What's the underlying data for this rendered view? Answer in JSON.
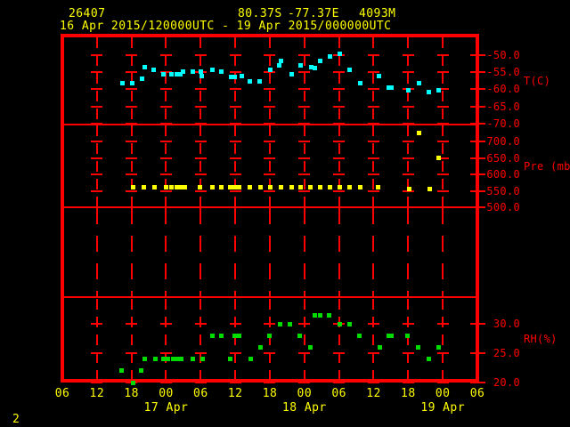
{
  "header": {
    "station_id": "26407",
    "latitude": "80.37S",
    "longitude": "-77.37E",
    "elevation": "4093M",
    "period": "16 Apr 2015/120000UTC - 19 Apr 2015/000000UTC"
  },
  "page_number": "2",
  "colors": {
    "background": "#000000",
    "frame": "#ff0000",
    "header_text": "#ffff00",
    "axis_text": "#ff0000",
    "temperature_series": "#00ffff",
    "pressure_series": "#ffff00",
    "humidity_series": "#00dc00"
  },
  "x_axis": {
    "start": "16 Apr 0600UTC",
    "end": "19 Apr 0600UTC",
    "hours_span": 72,
    "tick_interval_hours": 6,
    "hour_labels": [
      "06",
      "12",
      "18",
      "00",
      "06",
      "12",
      "18",
      "00",
      "06",
      "12",
      "18",
      "00",
      "06"
    ],
    "date_labels": [
      {
        "label": "17 Apr",
        "hour": 18
      },
      {
        "label": "18 Apr",
        "hour": 42
      },
      {
        "label": "19 Apr",
        "hour": 66
      }
    ]
  },
  "chart_data": [
    {
      "type": "scatter",
      "panel": "temperature",
      "series_name": "Temperature",
      "ylabel": "T(C)",
      "color_key": "temperature_series",
      "ylim": [
        -70,
        -45
      ],
      "yticks": [
        -50,
        -55,
        -60,
        -65,
        -70
      ],
      "x_unit": "hours since 16 Apr 0600UTC",
      "points": [
        [
          10.4,
          -58.1
        ],
        [
          12.1,
          -58.1
        ],
        [
          13.8,
          -56.8
        ],
        [
          14.3,
          -53.6
        ],
        [
          15.8,
          -54.4
        ],
        [
          17.5,
          -55.5
        ],
        [
          19,
          -55.5
        ],
        [
          19.8,
          -55.5
        ],
        [
          20.4,
          -55.5
        ],
        [
          21,
          -54.9
        ],
        [
          22.6,
          -54.7
        ],
        [
          24.1,
          -54.9
        ],
        [
          24.2,
          -56.2
        ],
        [
          26,
          -54.2
        ],
        [
          27.6,
          -54.9
        ],
        [
          29.3,
          -56.5
        ],
        [
          29.9,
          -56.5
        ],
        [
          31.2,
          -56.2
        ],
        [
          32.6,
          -57.8
        ],
        [
          34.2,
          -57.8
        ],
        [
          36.1,
          -54.2
        ],
        [
          37.6,
          -52.9
        ],
        [
          37.9,
          -51.8
        ],
        [
          39.8,
          -55.5
        ],
        [
          41.3,
          -52.9
        ],
        [
          43.2,
          -53.6
        ],
        [
          43.8,
          -53.9
        ],
        [
          44.7,
          -51.8
        ],
        [
          46.4,
          -50.3
        ],
        [
          48.2,
          -49.5
        ],
        [
          49.9,
          -54.2
        ],
        [
          51.7,
          -58.1
        ],
        [
          55,
          -56.2
        ],
        [
          56.7,
          -59.4
        ],
        [
          57.1,
          -59.4
        ],
        [
          60,
          -60.2
        ],
        [
          61.9,
          -58.3
        ],
        [
          63.6,
          -60.9
        ],
        [
          65.3,
          -60.4
        ]
      ]
    },
    {
      "type": "scatter",
      "panel": "pressure",
      "series_name": "Pressure",
      "ylabel": "Pre (mb)",
      "color_key": "pressure_series",
      "ylim": [
        500,
        750
      ],
      "yticks": [
        700,
        650,
        600,
        550,
        500
      ],
      "x_unit": "hours since 16 Apr 0600UTC",
      "points": [
        [
          12.3,
          562
        ],
        [
          14.1,
          562
        ],
        [
          16,
          562
        ],
        [
          18,
          562
        ],
        [
          19,
          562
        ],
        [
          19.8,
          562
        ],
        [
          20.6,
          562
        ],
        [
          21.3,
          562
        ],
        [
          23.8,
          562
        ],
        [
          26,
          562
        ],
        [
          27.6,
          562
        ],
        [
          29.2,
          562
        ],
        [
          29.9,
          562
        ],
        [
          30.7,
          562
        ],
        [
          32.6,
          562
        ],
        [
          34.4,
          562
        ],
        [
          36.1,
          562
        ],
        [
          37.9,
          562
        ],
        [
          39.8,
          562
        ],
        [
          41.3,
          562
        ],
        [
          43,
          562
        ],
        [
          44.8,
          562
        ],
        [
          46.4,
          562
        ],
        [
          48.2,
          562
        ],
        [
          49.9,
          562
        ],
        [
          51.7,
          562
        ],
        [
          54.8,
          560
        ],
        [
          60.2,
          556
        ],
        [
          61.9,
          725
        ],
        [
          63.7,
          556
        ],
        [
          65.3,
          650
        ]
      ]
    },
    {
      "type": "scatter",
      "panel": "blank",
      "series_name": "",
      "ylabel": "",
      "color_key": "",
      "ylim": null,
      "yticks": [],
      "x_unit": "hours since 16 Apr 0600UTC",
      "points": []
    },
    {
      "type": "scatter",
      "panel": "humidity",
      "series_name": "Relative humidity",
      "ylabel": "RH(%)",
      "color_key": "humidity_series",
      "ylim": [
        20,
        34
      ],
      "yticks": [
        30,
        25,
        20
      ],
      "x_unit": "hours since 16 Apr 0600UTC",
      "points": [
        [
          10.3,
          22
        ],
        [
          12.3,
          20
        ],
        [
          13.7,
          22
        ],
        [
          14.3,
          24
        ],
        [
          16.1,
          24
        ],
        [
          17.5,
          24
        ],
        [
          18.3,
          24
        ],
        [
          19.2,
          24
        ],
        [
          19.8,
          24
        ],
        [
          20.7,
          24
        ],
        [
          22.6,
          24
        ],
        [
          24.3,
          24
        ],
        [
          26,
          28
        ],
        [
          27.6,
          28
        ],
        [
          29.2,
          24
        ],
        [
          29.9,
          28
        ],
        [
          30.7,
          28
        ],
        [
          32.7,
          24
        ],
        [
          34.4,
          26
        ],
        [
          35.9,
          28
        ],
        [
          37.8,
          30
        ],
        [
          39.5,
          30
        ],
        [
          41.2,
          28
        ],
        [
          43,
          26
        ],
        [
          43.8,
          31.5
        ],
        [
          44.7,
          31.5
        ],
        [
          46.2,
          31.5
        ],
        [
          48.2,
          30
        ],
        [
          49.9,
          30
        ],
        [
          51.6,
          28
        ],
        [
          55.1,
          26
        ],
        [
          56.7,
          28
        ],
        [
          57.1,
          28
        ],
        [
          59.9,
          28
        ],
        [
          61.7,
          26
        ],
        [
          63.6,
          24
        ],
        [
          65.3,
          26
        ]
      ]
    }
  ]
}
